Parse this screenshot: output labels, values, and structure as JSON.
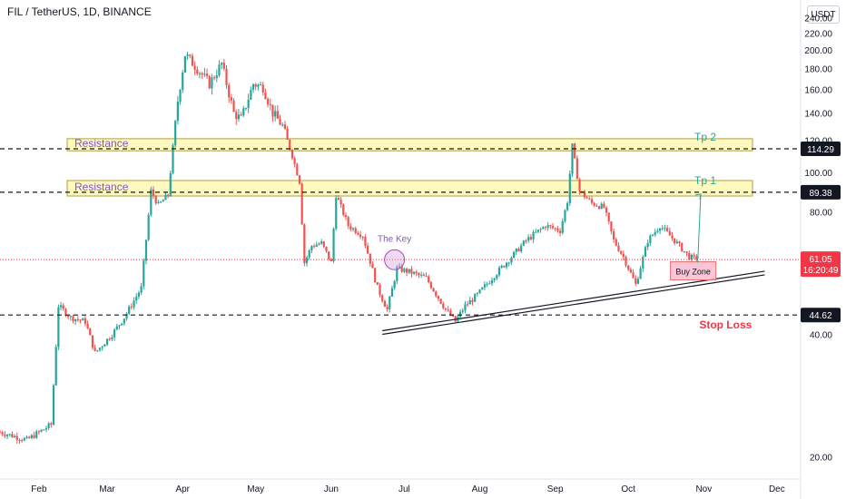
{
  "header": {
    "title": "FIL / TetherUS, 1D, BINANCE",
    "currency_button": "USDT"
  },
  "chart_data": {
    "type": "candlestick",
    "title": "FIL / TetherUS, 1D, BINANCE",
    "y_axis": {
      "ticks": [
        "240.00",
        "220.00",
        "200.00",
        "180.00",
        "160.00",
        "140.00",
        "120.00",
        "100.00",
        "80.00",
        "60.00",
        "40.00",
        "20.00"
      ],
      "tick_values": [
        240,
        220,
        200,
        180,
        160,
        140,
        120,
        100,
        80,
        60,
        40,
        20
      ],
      "scale": "log",
      "range": [
        18,
        252
      ]
    },
    "x_axis": {
      "ticks": [
        "Feb",
        "Mar",
        "Apr",
        "May",
        "Jun",
        "Jul",
        "Aug",
        "Sep",
        "Oct",
        "Nov",
        "Dec"
      ],
      "range": [
        "Jan 16",
        "Dec 10"
      ]
    },
    "price_path": [
      [
        "Jan 16",
        23
      ],
      [
        "Jan 27",
        22
      ],
      [
        "Feb 6",
        24
      ],
      [
        "Feb 9",
        47
      ],
      [
        "Feb 14",
        44
      ],
      [
        "Feb 20",
        43
      ],
      [
        "Feb 24",
        36
      ],
      [
        "Mar 3",
        40
      ],
      [
        "Mar 8",
        44
      ],
      [
        "Mar 15",
        52
      ],
      [
        "Mar 19",
        90
      ],
      [
        "Mar 22",
        83
      ],
      [
        "Mar 26",
        88
      ],
      [
        "Mar 30",
        150
      ],
      [
        "Apr 2",
        195
      ],
      [
        "Apr 7",
        180
      ],
      [
        "Apr 12",
        165
      ],
      [
        "Apr 17",
        185
      ],
      [
        "Apr 22",
        140
      ],
      [
        "Apr 25",
        135
      ],
      [
        "Apr 30",
        165
      ],
      [
        "May 4",
        162
      ],
      [
        "May 8",
        140
      ],
      [
        "May 12",
        130
      ],
      [
        "May 16",
        110
      ],
      [
        "May 19",
        95
      ],
      [
        "May 21",
        60
      ],
      [
        "May 24",
        66
      ],
      [
        "May 28",
        67
      ],
      [
        "Jun 1",
        60
      ],
      [
        "Jun 3",
        88
      ],
      [
        "Jun 8",
        74
      ],
      [
        "Jun 14",
        70
      ],
      [
        "Jun 20",
        52
      ],
      [
        "Jun 24",
        46
      ],
      [
        "Jun 28",
        58
      ],
      [
        "Jul 3",
        57
      ],
      [
        "Jul 10",
        55
      ],
      [
        "Jul 18",
        46
      ],
      [
        "Jul 22",
        43
      ],
      [
        "Jul 26",
        47
      ],
      [
        "Jul 31",
        50
      ],
      [
        "Aug 6",
        55
      ],
      [
        "Aug 14",
        62
      ],
      [
        "Aug 20",
        68
      ],
      [
        "Aug 28",
        74
      ],
      [
        "Sep 3",
        72
      ],
      [
        "Sep 6",
        85
      ],
      [
        "Sep 8",
        116
      ],
      [
        "Sep 11",
        90
      ],
      [
        "Sep 16",
        84
      ],
      [
        "Sep 21",
        82
      ],
      [
        "Sep 25",
        68
      ],
      [
        "Sep 29",
        62
      ],
      [
        "Oct 4",
        53
      ],
      [
        "Oct 9",
        68
      ],
      [
        "Oct 14",
        74
      ],
      [
        "Oct 20",
        68
      ],
      [
        "Oct 26",
        62
      ],
      [
        "Oct 29",
        61.05
      ]
    ],
    "last_price": {
      "value": "61.05",
      "countdown": "16:20:49"
    },
    "levels": [
      {
        "name": "Resistance / Tp 2",
        "value": 114.29,
        "zone": [
          113,
          121
        ]
      },
      {
        "name": "Resistance / Tp 1",
        "value": 89.38,
        "zone": [
          87.5,
          95.5
        ]
      },
      {
        "name": "Stop Loss",
        "value": 44.62
      }
    ],
    "annotations": [
      {
        "text": "Resistance",
        "level": 114.29
      },
      {
        "text": "Resistance",
        "level": 89.38
      },
      {
        "text": "Tp 2",
        "level": 114.29
      },
      {
        "text": "Tp 1",
        "level": 89.38
      },
      {
        "text": "The Key",
        "date": "Jun 27",
        "price": 61
      },
      {
        "text": "Buy Zone",
        "date": "Oct 28",
        "price": 57
      },
      {
        "text": "Stop Loss",
        "date": "Oct 29",
        "price": 44.62
      }
    ],
    "trendline": {
      "from": [
        "Jun 22",
        40
      ],
      "to": [
        "Nov 26",
        56
      ]
    },
    "price_labels": [
      "114.29",
      "89.38",
      "44.62"
    ],
    "colors": {
      "up": "#26a69a",
      "down": "#ef5350",
      "zone_fill": "#fff59d",
      "zone_border": "#b0a03a",
      "resistance_text": "#7e57c2",
      "tp_text": "#26a69a",
      "stop_loss_text": "#f23645",
      "buy_zone_fill": "#f8bbd0",
      "key_circle": "#ce93d8",
      "level_line": "#131722",
      "last_price_bg": "#f23645"
    }
  }
}
